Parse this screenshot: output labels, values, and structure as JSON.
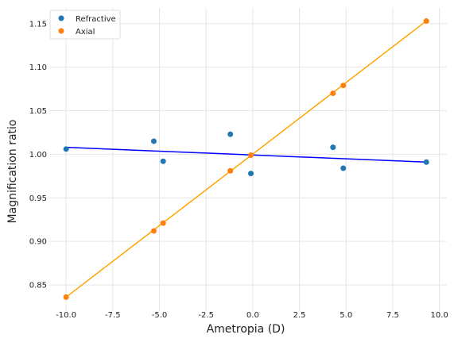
{
  "chart_data": {
    "type": "scatter",
    "xlabel": "Ametropia (D)",
    "ylabel": "Magnification ratio",
    "xlim": [
      -10.9,
      10.4
    ],
    "ylim": [
      0.82,
      1.168
    ],
    "x_ticks": [
      "-10.0",
      "-7.5",
      "-5.0",
      "-2.5",
      "0.0",
      "2.5",
      "5.0",
      "7.5",
      "10.0"
    ],
    "x_tick_values": [
      -10,
      -7.5,
      -5,
      -2.5,
      0,
      2.5,
      5,
      7.5,
      10
    ],
    "y_ticks": [
      "0.85",
      "0.90",
      "0.95",
      "1.00",
      "1.05",
      "1.10",
      "1.15"
    ],
    "y_tick_values": [
      0.85,
      0.9,
      0.95,
      1.0,
      1.05,
      1.1,
      1.15
    ],
    "grid": true,
    "legend_position": "top-left",
    "series": [
      {
        "name": "Refractive",
        "color": "#1f77b4",
        "kind": "scatter",
        "points": [
          {
            "x": -10.0,
            "y": 1.006
          },
          {
            "x": -5.3,
            "y": 1.015
          },
          {
            "x": -4.8,
            "y": 0.992
          },
          {
            "x": -1.2,
            "y": 1.023
          },
          {
            "x": -0.1,
            "y": 0.978
          },
          {
            "x": 4.3,
            "y": 1.008
          },
          {
            "x": 4.85,
            "y": 0.984
          },
          {
            "x": 9.3,
            "y": 0.991
          }
        ]
      },
      {
        "name": "Axial",
        "color": "#ff7f0e",
        "kind": "scatter",
        "points": [
          {
            "x": -10.0,
            "y": 0.836
          },
          {
            "x": -5.3,
            "y": 0.912
          },
          {
            "x": -4.8,
            "y": 0.921
          },
          {
            "x": -1.2,
            "y": 0.981
          },
          {
            "x": -0.1,
            "y": 0.999
          },
          {
            "x": 4.3,
            "y": 1.07
          },
          {
            "x": 4.85,
            "y": 1.079
          },
          {
            "x": 9.3,
            "y": 1.153
          }
        ]
      }
    ],
    "fit_lines": [
      {
        "color": "#0000ff",
        "points": [
          {
            "x": -10.0,
            "y": 1.008
          },
          {
            "x": 9.3,
            "y": 0.991
          }
        ]
      },
      {
        "color": "#ffa500",
        "points": [
          {
            "x": -10.0,
            "y": 0.836
          },
          {
            "x": 9.3,
            "y": 1.153
          }
        ]
      }
    ]
  }
}
